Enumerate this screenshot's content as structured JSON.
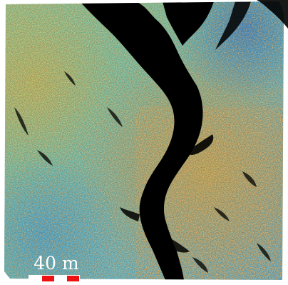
{
  "scale_bar": {
    "label": "40 m",
    "segment_colors": [
      "#ffffff",
      "#ee1111",
      "#ffffff",
      "#ee1111"
    ]
  },
  "palette": {
    "low": "#3fa9e6",
    "mid": "#8fd9a0",
    "high": "#e8c640",
    "peak": "#d8642a",
    "shadow": "#000000",
    "background": "#ffffff"
  }
}
